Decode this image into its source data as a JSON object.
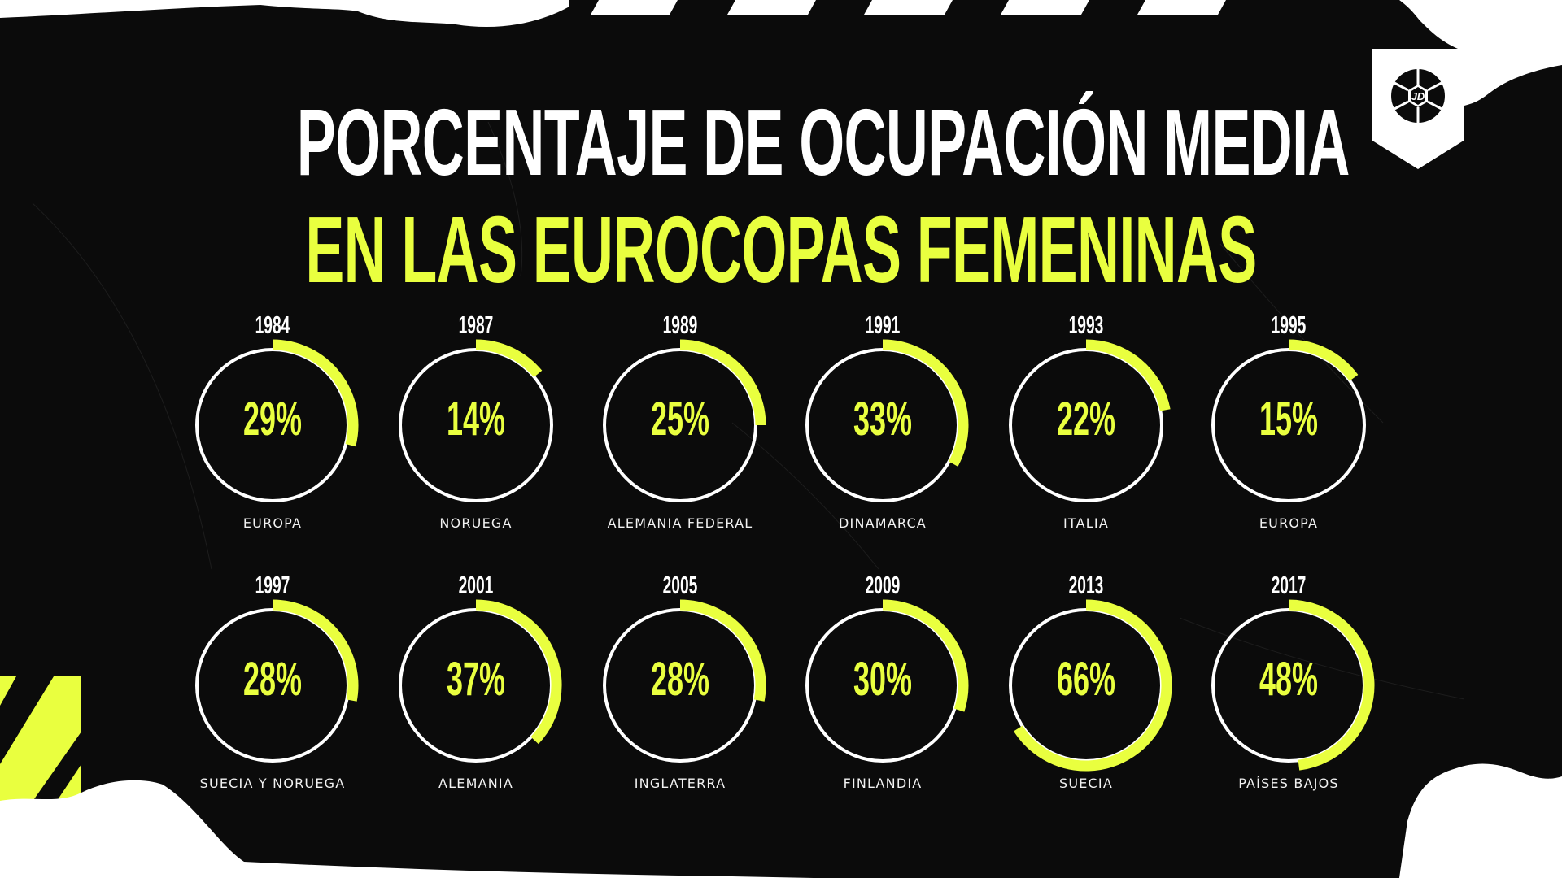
{
  "title": {
    "line1": "PORCENTAJE DE OCUPACIÓN MEDIA",
    "line2": "EN LAS EUROCOPAS FEMENINAS"
  },
  "logo": {
    "icon": "jd-football-badge-icon",
    "text": "JD"
  },
  "colors": {
    "background": "#0b0b0b",
    "accent": "#e9ff3f",
    "text": "#ffffff",
    "ring": "#ffffff"
  },
  "items": [
    {
      "year": "1984",
      "value": 29,
      "label": "29%",
      "country": "EUROPA"
    },
    {
      "year": "1987",
      "value": 14,
      "label": "14%",
      "country": "NORUEGA"
    },
    {
      "year": "1989",
      "value": 25,
      "label": "25%",
      "country": "ALEMANIA FEDERAL"
    },
    {
      "year": "1991",
      "value": 33,
      "label": "33%",
      "country": "DINAMARCA"
    },
    {
      "year": "1993",
      "value": 22,
      "label": "22%",
      "country": "ITALIA"
    },
    {
      "year": "1995",
      "value": 15,
      "label": "15%",
      "country": "EUROPA"
    },
    {
      "year": "1997",
      "value": 28,
      "label": "28%",
      "country": "SUECIA Y NORUEGA"
    },
    {
      "year": "2001",
      "value": 37,
      "label": "37%",
      "country": "ALEMANIA"
    },
    {
      "year": "2005",
      "value": 28,
      "label": "28%",
      "country": "INGLATERRA"
    },
    {
      "year": "2009",
      "value": 30,
      "label": "30%",
      "country": "FINLANDIA"
    },
    {
      "year": "2013",
      "value": 66,
      "label": "66%",
      "country": "SUECIA"
    },
    {
      "year": "2017",
      "value": 48,
      "label": "48%",
      "country": "PAÍSES BAJOS"
    }
  ],
  "chart_data": {
    "type": "pie",
    "subtype": "radial-progress",
    "title": "PORCENTAJE DE OCUPACIÓN MEDIA EN LAS EUROCOPAS FEMENINAS",
    "categories": [
      "1984",
      "1987",
      "1989",
      "1991",
      "1993",
      "1995",
      "1997",
      "2001",
      "2005",
      "2009",
      "2013",
      "2017"
    ],
    "hosts": [
      "EUROPA",
      "NORUEGA",
      "ALEMANIA FEDERAL",
      "DINAMARCA",
      "ITALIA",
      "EUROPA",
      "SUECIA Y NORUEGA",
      "ALEMANIA",
      "INGLATERRA",
      "FINLANDIA",
      "SUECIA",
      "PAÍSES BAJOS"
    ],
    "values": [
      29,
      14,
      25,
      33,
      22,
      15,
      28,
      37,
      28,
      30,
      66,
      48
    ],
    "unit": "%",
    "ylim": [
      0,
      100
    ],
    "layout": "2 rows x 6 columns of ring gauges",
    "legend": "none"
  }
}
